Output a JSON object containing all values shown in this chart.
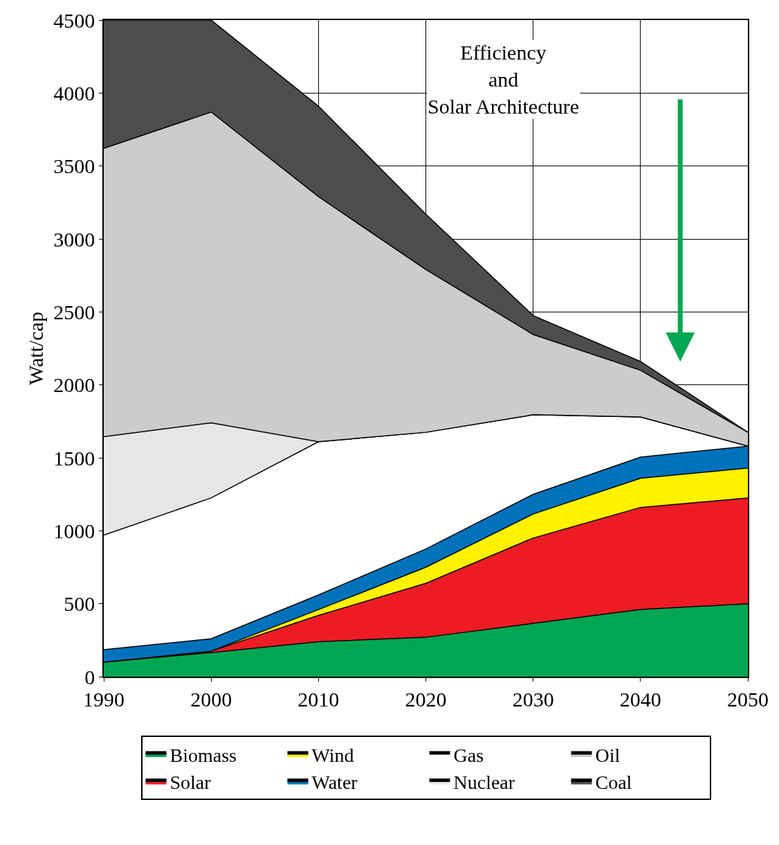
{
  "chart_data": {
    "type": "area",
    "stacked": true,
    "ylabel": "Watt/cap",
    "x": [
      1990,
      2000,
      2010,
      2020,
      2030,
      2040,
      2050
    ],
    "xlim": [
      1990,
      2050
    ],
    "xticks": [
      1990,
      2000,
      2010,
      2020,
      2030,
      2040,
      2050
    ],
    "ylim": [
      0,
      4500
    ],
    "yticks": [
      0,
      500,
      1000,
      1500,
      2000,
      2500,
      3000,
      3500,
      4000,
      4500
    ],
    "grid": true,
    "legend": "bottom",
    "annotations": [
      "Efficiency\nand\nSolar Architecture"
    ],
    "series": [
      {
        "name": "Biomass",
        "color": "#00a651",
        "values": [
          100,
          165,
          240,
          270,
          365,
          460,
          500
        ]
      },
      {
        "name": "Solar",
        "color": "#ed1c24",
        "values": [
          0,
          10,
          180,
          370,
          585,
          700,
          725
        ]
      },
      {
        "name": "Wind",
        "color": "#fff200",
        "values": [
          0,
          0,
          40,
          110,
          165,
          200,
          205
        ]
      },
      {
        "name": "Water",
        "color": "#0072bc",
        "values": [
          85,
          85,
          100,
          125,
          135,
          145,
          150
        ]
      },
      {
        "name": "Gas",
        "color": "#ffffff",
        "values": [
          785,
          965,
          1050,
          800,
          545,
          275,
          0
        ]
      },
      {
        "name": "Nuclear",
        "color": "#e6e6e6",
        "values": [
          675,
          515,
          0,
          0,
          0,
          0,
          0
        ]
      },
      {
        "name": "Oil",
        "color": "#cccccc",
        "values": [
          1975,
          2130,
          1680,
          1115,
          550,
          320,
          95
        ]
      },
      {
        "name": "Coal",
        "color": "#4d4d4f",
        "values": [
          880,
          630,
          620,
          380,
          130,
          60,
          0
        ]
      }
    ]
  }
}
